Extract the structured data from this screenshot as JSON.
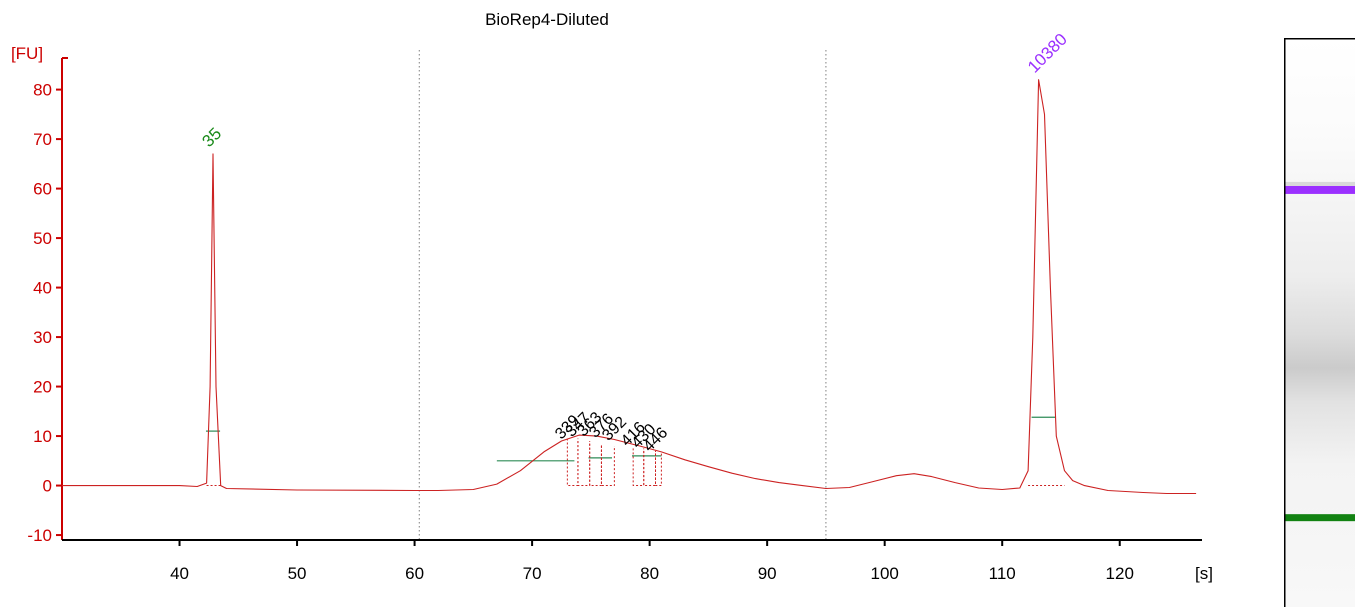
{
  "chart_data": {
    "type": "line",
    "title": "BioRep4-Diluted",
    "ylabel": "[FU]",
    "xlabel": "[s]",
    "xlim": [
      30,
      127
    ],
    "ylim": [
      -11,
      88
    ],
    "x_ticks": [
      40,
      50,
      60,
      70,
      80,
      90,
      100,
      110,
      120
    ],
    "y_ticks": [
      -10,
      0,
      10,
      20,
      30,
      40,
      50,
      60,
      70,
      80
    ],
    "colors": {
      "axis": "#cc0000",
      "trace": "#cc2222",
      "marker": "#2e8b57",
      "lower_marker_label": "#1a8a1a",
      "upper_marker_label": "#9b30ff",
      "peak_label": "#000000",
      "divider": "#808080"
    },
    "region_dividers": [
      60.4,
      95.0
    ],
    "series": [
      {
        "values": [
          [
            30,
            0
          ],
          [
            40,
            0
          ],
          [
            41.5,
            -0.2
          ],
          [
            42.3,
            0.5
          ],
          [
            42.6,
            20
          ],
          [
            42.85,
            67
          ],
          [
            43.1,
            20
          ],
          [
            43.5,
            0
          ],
          [
            44,
            -0.6
          ],
          [
            50,
            -0.9
          ],
          [
            60,
            -1.0
          ],
          [
            62,
            -1.0
          ],
          [
            65,
            -0.8
          ],
          [
            67,
            0.3
          ],
          [
            69,
            3.0
          ],
          [
            71,
            6.8
          ],
          [
            72.5,
            9.0
          ],
          [
            74,
            10.2
          ],
          [
            75.5,
            10.0
          ],
          [
            77,
            9.3
          ],
          [
            79,
            8.1
          ],
          [
            81,
            6.8
          ],
          [
            83,
            5.2
          ],
          [
            85,
            3.8
          ],
          [
            87,
            2.5
          ],
          [
            89,
            1.4
          ],
          [
            91,
            0.6
          ],
          [
            93,
            0.0
          ],
          [
            95,
            -0.6
          ],
          [
            97,
            -0.4
          ],
          [
            99,
            0.8
          ],
          [
            101,
            2.0
          ],
          [
            102.5,
            2.4
          ],
          [
            104,
            1.8
          ],
          [
            106,
            0.6
          ],
          [
            108,
            -0.5
          ],
          [
            110,
            -0.8
          ],
          [
            111.5,
            -0.5
          ],
          [
            112.2,
            3
          ],
          [
            112.6,
            30
          ],
          [
            113.1,
            82
          ],
          [
            113.6,
            75
          ],
          [
            114.1,
            40
          ],
          [
            114.6,
            10
          ],
          [
            115.3,
            3
          ],
          [
            116,
            1
          ],
          [
            117,
            0
          ],
          [
            119,
            -1.0
          ],
          [
            122,
            -1.4
          ],
          [
            124,
            -1.6
          ],
          [
            126.5,
            -1.6
          ]
        ]
      }
    ],
    "marker_peaks": [
      {
        "label": "35",
        "x": 42.85,
        "y": 67,
        "level": 11.0,
        "x_from": 42.3,
        "x_to": 43.5,
        "role": "lower"
      },
      {
        "label": "10380",
        "x": 113.1,
        "y": 82,
        "level": 13.8,
        "x_from": 112.2,
        "x_to": 115.3,
        "role": "upper"
      }
    ],
    "peaks": [
      {
        "label": "339",
        "x": 73.0,
        "height": 9.6
      },
      {
        "label": "347",
        "x": 73.9,
        "height": 10.1
      },
      {
        "label": "363",
        "x": 74.9,
        "height": 10.2
      },
      {
        "label": "376",
        "x": 75.9,
        "height": 9.9
      },
      {
        "label": "392",
        "x": 77.0,
        "height": 9.3
      },
      {
        "label": "416",
        "x": 78.6,
        "height": 8.2
      },
      {
        "label": "430",
        "x": 79.5,
        "height": 7.8
      },
      {
        "label": "446",
        "x": 80.5,
        "height": 7.1
      }
    ],
    "peak_windows": [
      [
        73.0,
        73.9
      ],
      [
        73.9,
        74.9
      ],
      [
        74.9,
        75.9
      ],
      [
        75.9,
        77.0
      ],
      [
        78.6,
        79.5
      ],
      [
        79.5,
        80.5
      ],
      [
        80.5,
        81.0
      ]
    ],
    "baselines": [
      {
        "x_from": 67.0,
        "x_to": 73.6,
        "level": 5.0
      },
      {
        "x_from": 74.8,
        "x_to": 76.8,
        "level": 5.6
      },
      {
        "x_from": 78.5,
        "x_to": 81.0,
        "level": 6.0
      }
    ]
  },
  "gel_lane": {
    "colors": {
      "upper_band": "#9b30ff",
      "lower_band": "#128212"
    },
    "bands": [
      {
        "name": "upper_marker",
        "position": 0.267
      },
      {
        "name": "smear",
        "position": 0.58
      },
      {
        "name": "lower_marker",
        "position": 0.843
      }
    ]
  }
}
